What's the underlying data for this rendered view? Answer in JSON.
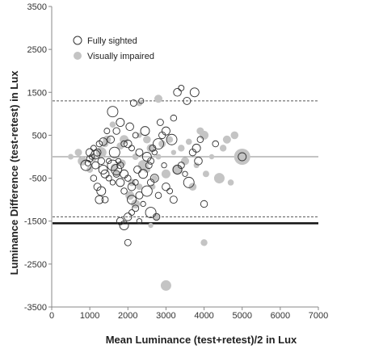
{
  "chart_data": {
    "type": "scatter",
    "xlabel": "Mean Luminance (test+retest)/2 in Lux",
    "ylabel": "Luminance Difference (test-retest) in Lux",
    "xlim": [
      0,
      7000
    ],
    "ylim": [
      -3500,
      3500
    ],
    "xticks": [
      "0",
      "1000",
      "2000",
      "3000",
      "4000",
      "5000",
      "6000",
      "7000"
    ],
    "yticks": [
      "3500",
      "2500",
      "1500",
      "500",
      "-500",
      "-1500",
      "-2500",
      "-3500"
    ],
    "grid": false,
    "legend_position": "top-left",
    "series": [
      {
        "name": "Fully sighted",
        "marker": "hollow-circle",
        "color": "#333333",
        "points": [
          [
            1100,
            200
          ],
          [
            1200,
            100
          ],
          [
            1150,
            50
          ],
          [
            1000,
            -50
          ],
          [
            1050,
            0
          ],
          [
            900,
            -200
          ],
          [
            1300,
            -100
          ],
          [
            1400,
            -400
          ],
          [
            1250,
            300
          ],
          [
            1350,
            350
          ],
          [
            1500,
            -500
          ],
          [
            1200,
            -700
          ],
          [
            1300,
            -800
          ],
          [
            1400,
            -1000
          ],
          [
            1600,
            -600
          ],
          [
            1700,
            -300
          ],
          [
            1800,
            -200
          ],
          [
            1900,
            -400
          ],
          [
            2000,
            -500
          ],
          [
            2100,
            -700
          ],
          [
            2200,
            -600
          ],
          [
            2300,
            -900
          ],
          [
            2100,
            -1000
          ],
          [
            2200,
            -1200
          ],
          [
            2400,
            -1100
          ],
          [
            2500,
            -800
          ],
          [
            2600,
            -600
          ],
          [
            2700,
            -500
          ],
          [
            2800,
            -900
          ],
          [
            3000,
            -700
          ],
          [
            3100,
            -800
          ],
          [
            3200,
            -1000
          ],
          [
            3300,
            -300
          ],
          [
            3400,
            -200
          ],
          [
            3500,
            -400
          ],
          [
            3600,
            -600
          ],
          [
            3700,
            100
          ],
          [
            3800,
            200
          ],
          [
            3900,
            400
          ],
          [
            2000,
            300
          ],
          [
            2100,
            200
          ],
          [
            2300,
            100
          ],
          [
            2500,
            0
          ],
          [
            2600,
            -100
          ],
          [
            2700,
            100
          ],
          [
            2800,
            300
          ],
          [
            2900,
            500
          ],
          [
            3000,
            600
          ],
          [
            3200,
            900
          ],
          [
            3300,
            1500
          ],
          [
            3400,
            1600
          ],
          [
            3550,
            1300
          ],
          [
            3750,
            1500
          ],
          [
            2150,
            1250
          ],
          [
            2350,
            1300
          ],
          [
            1600,
            1050
          ],
          [
            1700,
            600
          ],
          [
            1800,
            800
          ],
          [
            1900,
            300
          ],
          [
            2050,
            700
          ],
          [
            2200,
            500
          ],
          [
            2250,
            -300
          ],
          [
            2400,
            -400
          ],
          [
            2550,
            -200
          ],
          [
            1500,
            -100
          ],
          [
            1600,
            -200
          ],
          [
            1700,
            -400
          ],
          [
            1800,
            -600
          ],
          [
            1900,
            -800
          ],
          [
            2000,
            -1400
          ],
          [
            2100,
            -1300
          ],
          [
            1800,
            -1500
          ],
          [
            1900,
            -1600
          ],
          [
            2000,
            -2000
          ],
          [
            2300,
            -1500
          ],
          [
            2600,
            -1300
          ],
          [
            2750,
            -1400
          ],
          [
            1250,
            -1000
          ],
          [
            1100,
            -500
          ],
          [
            1000,
            100
          ],
          [
            950,
            -150
          ],
          [
            1150,
            -200
          ],
          [
            1350,
            -300
          ],
          [
            2650,
            200
          ],
          [
            2950,
            -200
          ],
          [
            3150,
            400
          ],
          [
            4000,
            -1100
          ],
          [
            5000,
            0
          ],
          [
            4300,
            300
          ],
          [
            3850,
            -100
          ],
          [
            1450,
            600
          ],
          [
            1550,
            400
          ],
          [
            2450,
            600
          ],
          [
            2850,
            800
          ],
          [
            1750,
            -100
          ],
          [
            1650,
            100
          ]
        ]
      },
      {
        "name": "Visually impaired",
        "marker": "filled-circle",
        "color": "#c4c4c4",
        "points": [
          [
            500,
            0
          ],
          [
            700,
            100
          ],
          [
            800,
            -100
          ],
          [
            1000,
            -300
          ],
          [
            1100,
            -50
          ],
          [
            1300,
            100
          ],
          [
            1400,
            300
          ],
          [
            1450,
            400
          ],
          [
            1600,
            750
          ],
          [
            1650,
            -250
          ],
          [
            1700,
            -400
          ],
          [
            1800,
            250
          ],
          [
            1900,
            400
          ],
          [
            2200,
            0
          ],
          [
            2300,
            500
          ],
          [
            2400,
            -200
          ],
          [
            2500,
            -300
          ],
          [
            2600,
            200
          ],
          [
            2700,
            -500
          ],
          [
            2750,
            -1400
          ],
          [
            2800,
            0
          ],
          [
            2900,
            300
          ],
          [
            3000,
            -400
          ],
          [
            3100,
            400
          ],
          [
            3200,
            100
          ],
          [
            3300,
            -300
          ],
          [
            3400,
            200
          ],
          [
            3500,
            -100
          ],
          [
            3600,
            350
          ],
          [
            3700,
            -700
          ],
          [
            3800,
            -200
          ],
          [
            3900,
            600
          ],
          [
            4000,
            500
          ],
          [
            4050,
            -400
          ],
          [
            4200,
            0
          ],
          [
            4400,
            -500
          ],
          [
            4500,
            200
          ],
          [
            4600,
            400
          ],
          [
            4700,
            -600
          ],
          [
            4800,
            500
          ],
          [
            5000,
            0
          ],
          [
            2100,
            -600
          ],
          [
            2200,
            -1100
          ],
          [
            2300,
            -700
          ],
          [
            2600,
            -1600
          ],
          [
            3000,
            -3000
          ],
          [
            4000,
            -2000
          ],
          [
            2800,
            1350
          ],
          [
            2300,
            1250
          ],
          [
            2500,
            400
          ],
          [
            2650,
            -700
          ],
          [
            1850,
            -150
          ],
          [
            2050,
            -900
          ]
        ]
      }
    ],
    "reference_lines": [
      {
        "y": 0,
        "style": "solid-thin"
      },
      {
        "y": 1300,
        "style": "dashed"
      },
      {
        "y": -1400,
        "style": "dashed"
      },
      {
        "y": -1550,
        "style": "solid-thick"
      }
    ]
  }
}
